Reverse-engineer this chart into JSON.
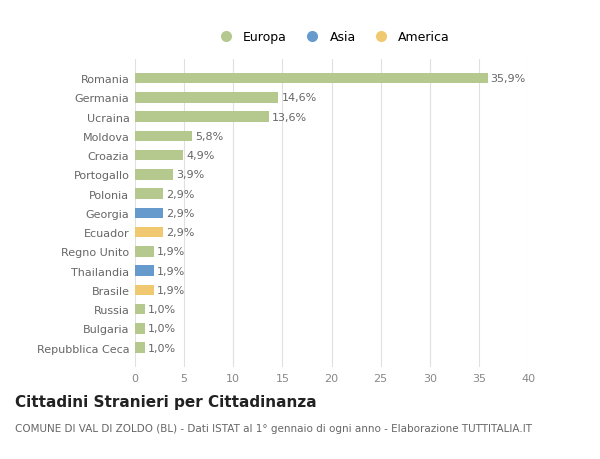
{
  "categories": [
    "Repubblica Ceca",
    "Bulgaria",
    "Russia",
    "Brasile",
    "Thailandia",
    "Regno Unito",
    "Ecuador",
    "Georgia",
    "Polonia",
    "Portogallo",
    "Croazia",
    "Moldova",
    "Ucraina",
    "Germania",
    "Romania"
  ],
  "values": [
    1.0,
    1.0,
    1.0,
    1.9,
    1.9,
    1.9,
    2.9,
    2.9,
    2.9,
    3.9,
    4.9,
    5.8,
    13.6,
    14.6,
    35.9
  ],
  "labels": [
    "1,0%",
    "1,0%",
    "1,0%",
    "1,9%",
    "1,9%",
    "1,9%",
    "2,9%",
    "2,9%",
    "2,9%",
    "3,9%",
    "4,9%",
    "5,8%",
    "13,6%",
    "14,6%",
    "35,9%"
  ],
  "colors": [
    "#b5c98e",
    "#b5c98e",
    "#b5c98e",
    "#f0c870",
    "#6699cc",
    "#b5c98e",
    "#f0c870",
    "#6699cc",
    "#b5c98e",
    "#b5c98e",
    "#b5c98e",
    "#b5c98e",
    "#b5c98e",
    "#b5c98e",
    "#b5c98e"
  ],
  "legend_labels": [
    "Europa",
    "Asia",
    "America"
  ],
  "legend_colors": [
    "#b5c98e",
    "#6699cc",
    "#f0c870"
  ],
  "title": "Cittadini Stranieri per Cittadinanza",
  "subtitle": "COMUNE DI VAL DI ZOLDO (BL) - Dati ISTAT al 1° gennaio di ogni anno - Elaborazione TUTTITALIA.IT",
  "xlim": [
    0,
    40
  ],
  "xticks": [
    0,
    5,
    10,
    15,
    20,
    25,
    30,
    35,
    40
  ],
  "background_color": "#ffffff",
  "grid_color": "#e0e0e0",
  "bar_height": 0.55,
  "label_fontsize": 8,
  "tick_fontsize": 8,
  "title_fontsize": 11,
  "subtitle_fontsize": 7.5
}
